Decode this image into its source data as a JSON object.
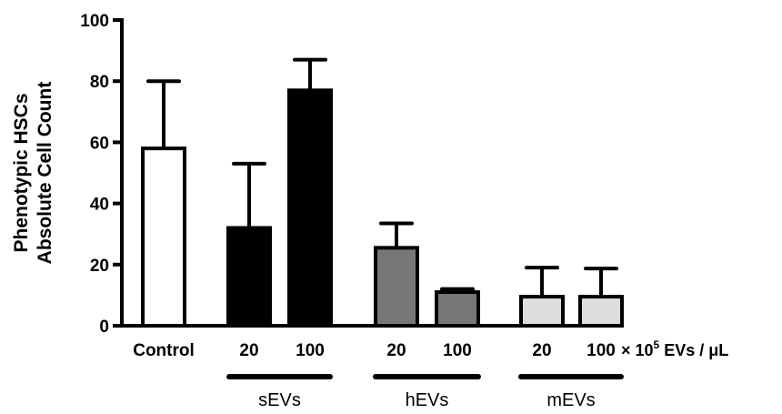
{
  "chart_data": {
    "type": "bar",
    "ylabel_lines": [
      "Phenotypic HSCs",
      "Absolute Cell Count"
    ],
    "ylim": [
      0,
      100
    ],
    "yticks": [
      0,
      20,
      40,
      60,
      80,
      100
    ],
    "unit_label": {
      "prefix": "× 10",
      "exponent": "5",
      "suffix": " EVs / μL"
    },
    "bars": [
      {
        "label": "Control",
        "value": 58,
        "error": 22,
        "fill": "#ffffff"
      },
      {
        "label": "20",
        "group": "sEVs",
        "value": 32,
        "error": 21,
        "fill": "#000000"
      },
      {
        "label": "100",
        "group": "sEVs",
        "value": 77,
        "error": 10,
        "fill": "#000000"
      },
      {
        "label": "20",
        "group": "hEVs",
        "value": 25.5,
        "error": 8,
        "fill": "#777777"
      },
      {
        "label": "100",
        "group": "hEVs",
        "value": 11,
        "error": 1,
        "fill": "#777777"
      },
      {
        "label": "20",
        "group": "mEVs",
        "value": 9.5,
        "error": 9.5,
        "fill": "#dddddd"
      },
      {
        "label": "100",
        "group": "mEVs",
        "value": 9.5,
        "error": 9.2,
        "fill": "#dddddd"
      }
    ],
    "groups": [
      "sEVs",
      "hEVs",
      "mEVs"
    ]
  }
}
